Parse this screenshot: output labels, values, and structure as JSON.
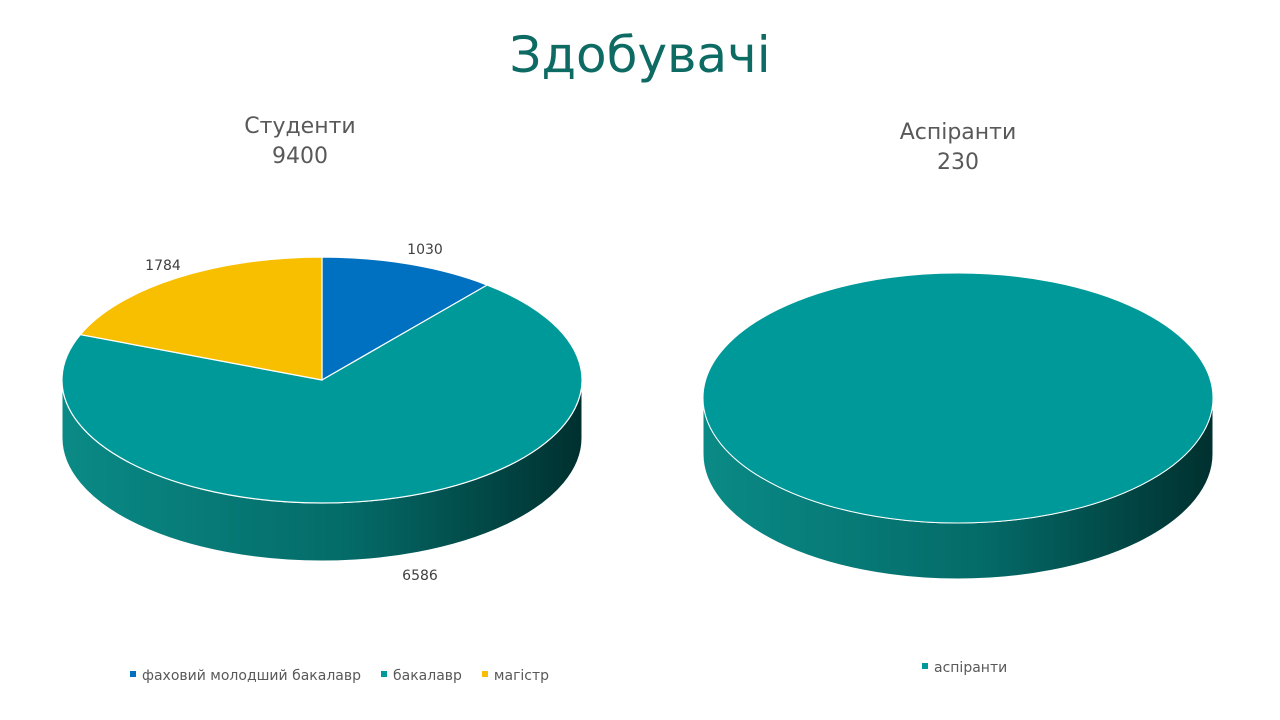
{
  "title": "Здобувачі",
  "chart_data": [
    {
      "type": "pie",
      "title": "Студенти",
      "subtitle": "9400",
      "categories": [
        "фаховий молодший бакалавр",
        "бакалавр",
        "магістр"
      ],
      "values": [
        1030,
        6586,
        1784
      ],
      "colors": [
        "#0070c0",
        "#009999",
        "#f8bf00"
      ],
      "legend_position": "bottom",
      "style": "3d"
    },
    {
      "type": "pie",
      "title": "Аспіранти",
      "subtitle": "230",
      "categories": [
        "аспіранти"
      ],
      "values": [
        230
      ],
      "colors": [
        "#009999"
      ],
      "legend_position": "bottom",
      "style": "3d"
    }
  ]
}
